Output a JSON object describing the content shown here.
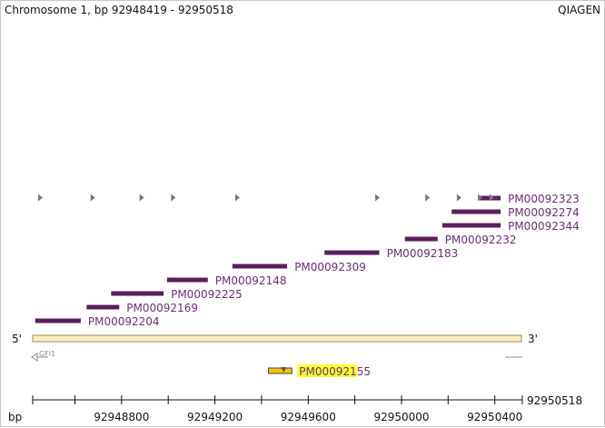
{
  "header": {
    "title": "Chromosome 1, bp 92948419 - 92950518",
    "brand": "QIAGEN"
  },
  "chart_data": {
    "type": "genome-track",
    "chromosome": "1",
    "range": [
      92948419,
      92950518
    ],
    "strand_labels": {
      "left": "5'",
      "right": "3'"
    },
    "gene": {
      "name": "GFI1",
      "direction": "reverse"
    },
    "primers": [
      {
        "name": "PM00092323",
        "start": 92950335,
        "end": 92950425
      },
      {
        "name": "PM00092274",
        "start": 92950215,
        "end": 92950425
      },
      {
        "name": "PM00092344",
        "start": 92950175,
        "end": 92950425
      },
      {
        "name": "PM00092232",
        "start": 92950015,
        "end": 92950155
      },
      {
        "name": "PM00092183",
        "start": 92949670,
        "end": 92949905
      },
      {
        "name": "PM00092309",
        "start": 92949275,
        "end": 92949510
      },
      {
        "name": "PM00092148",
        "start": 92948995,
        "end": 92949170
      },
      {
        "name": "PM00092225",
        "start": 92948755,
        "end": 92948980
      },
      {
        "name": "PM00092169",
        "start": 92948650,
        "end": 92948790
      },
      {
        "name": "PM00092204",
        "start": 92948430,
        "end": 92948625
      }
    ],
    "markers": [
      92948450,
      92948675,
      92948885,
      92949020,
      92949295,
      92949895,
      92950110,
      92950245,
      92950335,
      92950385
    ],
    "highlight": {
      "name": "PM00092155",
      "start": 92949430,
      "end": 92949530,
      "color": "#ffff33"
    },
    "axis": {
      "unit_label": "bp",
      "end_label": "92950518",
      "ticks": [
        92948800,
        92949200,
        92949600,
        92950000,
        92950400
      ],
      "minor_step": 200
    }
  }
}
